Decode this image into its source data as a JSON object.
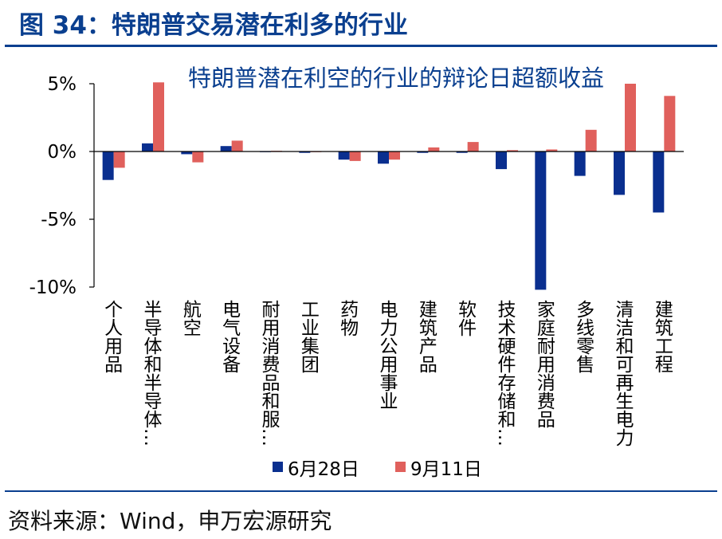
{
  "figure_title": "图 34：特朗普交易潜在利多的行业",
  "source": "资料来源：Wind，申万宏源研究",
  "colors": {
    "series1": "#0a2f8f",
    "series2": "#e0605c",
    "header": "#0a3f8f"
  },
  "chart_data": {
    "type": "bar",
    "title": "特朗普潜在利空的行业的辩论日超额收益",
    "categories": [
      "个人用品",
      "半导体和半导体…",
      "航空",
      "电气设备",
      "耐用消费品和服…",
      "工业集团",
      "药物",
      "电力公用事业",
      "建筑产品",
      "软件",
      "技术硬件存储和…",
      "家庭耐用消费品",
      "多线零售",
      "清洁和可再生电力",
      "建筑工程"
    ],
    "series": [
      {
        "name": "6月28日",
        "values": [
          -2.1,
          0.6,
          -0.2,
          0.4,
          0.0,
          -0.1,
          -0.6,
          -0.9,
          -0.1,
          -0.1,
          -1.3,
          -10.2,
          -1.8,
          -3.2,
          -4.5
        ]
      },
      {
        "name": "9月11日",
        "values": [
          -1.2,
          5.1,
          -0.8,
          0.8,
          0.05,
          0.0,
          -0.7,
          -0.6,
          0.3,
          0.7,
          0.1,
          0.15,
          1.6,
          5.0,
          4.1
        ]
      }
    ],
    "yticks": [
      "5%",
      "0%",
      "-5%",
      "-10%"
    ],
    "ylim": [
      -10,
      5
    ],
    "legend": "bottom"
  }
}
